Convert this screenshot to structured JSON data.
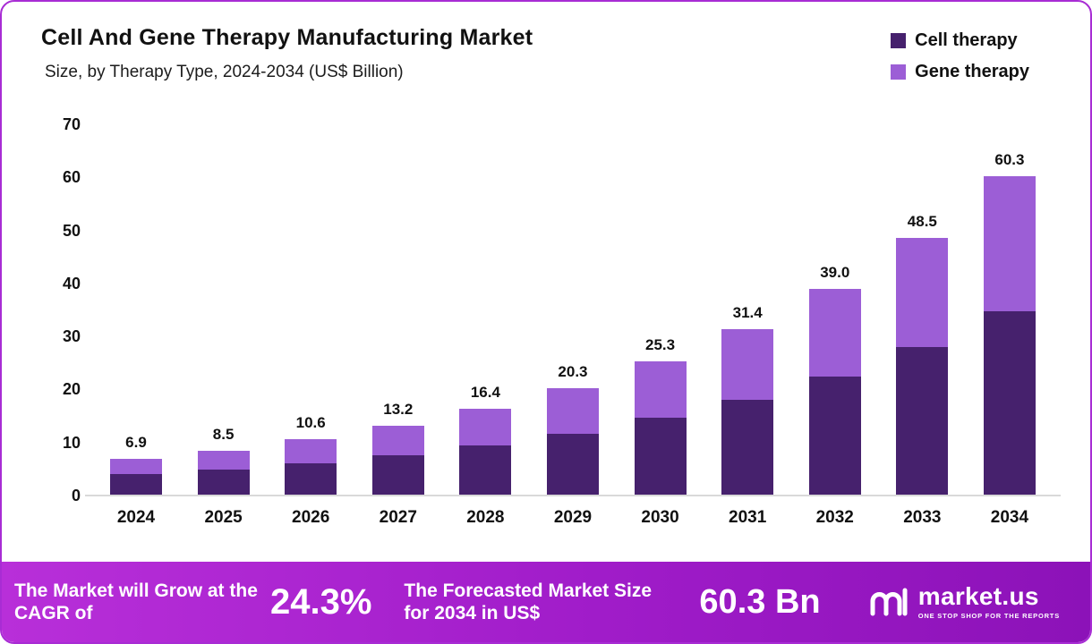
{
  "header": {
    "title": "Cell And Gene Therapy Manufacturing Market",
    "subtitle": "Size, by Therapy Type, 2024-2034 (US$ Billion)"
  },
  "legend": [
    {
      "label": "Cell therapy",
      "color": "#46216d"
    },
    {
      "label": "Gene therapy",
      "color": "#9c5ed6"
    }
  ],
  "chart_data": {
    "type": "bar",
    "stacked": true,
    "title": "Cell And Gene Therapy Manufacturing Market Size, by Therapy Type, 2024-2034 (US$ Billion)",
    "categories": [
      "2024",
      "2025",
      "2026",
      "2027",
      "2028",
      "2029",
      "2030",
      "2031",
      "2032",
      "2033",
      "2034"
    ],
    "series": [
      {
        "name": "Cell therapy",
        "color": "#46216d",
        "values": [
          4.0,
          4.9,
          6.1,
          7.6,
          9.4,
          11.7,
          14.6,
          18.1,
          22.5,
          28.0,
          34.8
        ]
      },
      {
        "name": "Gene therapy",
        "color": "#9c5ed6",
        "values": [
          2.9,
          3.6,
          4.5,
          5.6,
          7.0,
          8.6,
          10.7,
          13.3,
          16.5,
          20.5,
          25.5
        ]
      }
    ],
    "totals": [
      6.9,
      8.5,
      10.6,
      13.2,
      16.4,
      20.3,
      25.3,
      31.4,
      39.0,
      48.5,
      60.3
    ],
    "total_labels": [
      "6.9",
      "8.5",
      "10.6",
      "13.2",
      "16.4",
      "20.3",
      "25.3",
      "31.4",
      "39.0",
      "48.5",
      "60.3"
    ],
    "xlabel": "",
    "ylabel": "",
    "ylim": [
      0,
      70
    ],
    "yticks": [
      0,
      10,
      20,
      30,
      40,
      50,
      60,
      70
    ],
    "grid": false,
    "legend_position": "top-right"
  },
  "banner": {
    "cagr_label": "The Market will Grow at the CAGR of",
    "cagr_value": "24.3%",
    "forecast_label": "The Forecasted Market Size for 2034 in US$",
    "forecast_value": "60.3 Bn",
    "brand": "market.us",
    "brand_tagline": "One Stop Shop For The Reports"
  }
}
